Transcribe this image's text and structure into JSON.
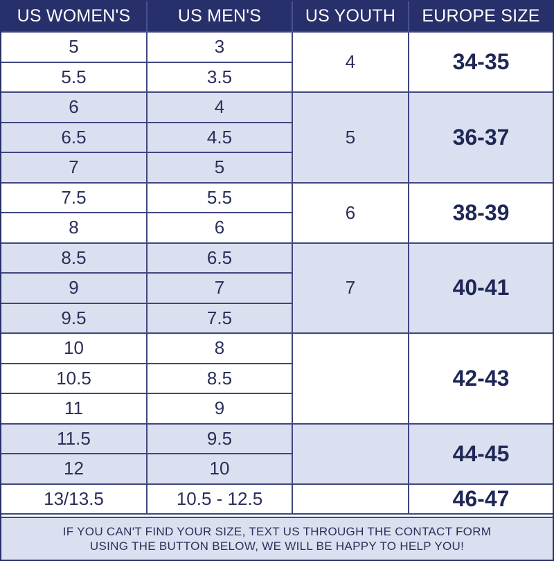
{
  "headers": [
    "US WOMEN'S",
    "US MEN'S",
    "US YOUTH",
    "EUROPE SIZE"
  ],
  "groups": [
    {
      "shade": "white",
      "youth": "4",
      "europe": "34-35",
      "rows": [
        {
          "women": "5",
          "men": "3"
        },
        {
          "women": "5.5",
          "men": "3.5"
        }
      ]
    },
    {
      "shade": "blue",
      "youth": "5",
      "europe": "36-37",
      "rows": [
        {
          "women": "6",
          "men": "4"
        },
        {
          "women": "6.5",
          "men": "4.5"
        },
        {
          "women": "7",
          "men": "5"
        }
      ]
    },
    {
      "shade": "white",
      "youth": "6",
      "europe": "38-39",
      "rows": [
        {
          "women": "7.5",
          "men": "5.5"
        },
        {
          "women": "8",
          "men": "6"
        }
      ]
    },
    {
      "shade": "blue",
      "youth": "7",
      "europe": "40-41",
      "rows": [
        {
          "women": "8.5",
          "men": "6.5"
        },
        {
          "women": "9",
          "men": "7"
        },
        {
          "women": "9.5",
          "men": "7.5"
        }
      ]
    },
    {
      "shade": "white",
      "youth": "",
      "europe": "42-43",
      "rows": [
        {
          "women": "10",
          "men": "8"
        },
        {
          "women": "10.5",
          "men": "8.5"
        },
        {
          "women": "11",
          "men": "9"
        }
      ]
    },
    {
      "shade": "blue",
      "youth": "",
      "europe": "44-45",
      "rows": [
        {
          "women": "11.5",
          "men": "9.5"
        },
        {
          "women": "12",
          "men": "10"
        }
      ]
    },
    {
      "shade": "white",
      "youth": "",
      "europe": "46-47",
      "rows": [
        {
          "women": "13/13.5",
          "men": "10.5 - 12.5"
        }
      ]
    }
  ],
  "footnote": {
    "line1": "IF YOU CAN'T FIND YOUR SIZE, TEXT US THROUGH THE CONTACT FORM",
    "line2": "USING THE BUTTON BELOW, WE WILL BE HAPPY TO HELP YOU!"
  },
  "colors": {
    "header_bg": "#27306a",
    "row_blue": "#dbe0f0",
    "row_white": "#ffffff",
    "border": "#3f467f",
    "text": "#2b2f5a"
  }
}
